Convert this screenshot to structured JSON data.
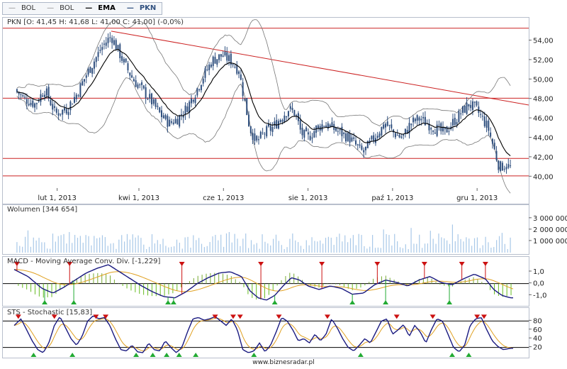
{
  "legend": {
    "items": [
      {
        "label": "BOL",
        "color": "#888888"
      },
      {
        "label": "BOL",
        "color": "#888888"
      },
      {
        "label": "EMA",
        "color": "#000000"
      },
      {
        "label": "PKN",
        "color": "#30507f"
      }
    ]
  },
  "footer": "www.biznesradar.pl",
  "chart_data": [
    {
      "type": "candlestick",
      "title": "PKN [O: 41,45  H: 41,68  L: 41,00  C: 41,00] (-0,0%)",
      "ylim": [
        39,
        55.5
      ],
      "yticks": [
        "40,00",
        "42,00",
        "44,00",
        "46,00",
        "48,00",
        "50,00",
        "52,00",
        "54,00"
      ],
      "ytick_values": [
        40,
        42,
        44,
        46,
        48,
        50,
        52,
        54
      ],
      "xticks": [
        "lut 1, 2013",
        "kwi 1, 2013",
        "cze 1, 2013",
        "sie 1, 2013",
        "paź 1, 2013",
        "gru 1, 2013"
      ],
      "xtick_days": [
        31,
        90,
        151,
        212,
        273,
        334
      ],
      "days_total": 360,
      "horizontal_lines": [
        55.3,
        48.1,
        41.9,
        40.1
      ],
      "trendline": [
        {
          "day": 70,
          "value": 55.0
        },
        {
          "day": 360,
          "value": 47.4
        }
      ],
      "close_anchors": [
        [
          0,
          49.0
        ],
        [
          8,
          48.0
        ],
        [
          15,
          47.5
        ],
        [
          22,
          49.0
        ],
        [
          30,
          46.5
        ],
        [
          38,
          47.0
        ],
        [
          45,
          48.5
        ],
        [
          52,
          50.5
        ],
        [
          58,
          52.0
        ],
        [
          64,
          53.5
        ],
        [
          70,
          54.5
        ],
        [
          75,
          53.0
        ],
        [
          80,
          51.5
        ],
        [
          86,
          50.0
        ],
        [
          92,
          49.0
        ],
        [
          98,
          48.0
        ],
        [
          105,
          46.5
        ],
        [
          112,
          45.5
        ],
        [
          118,
          46.0
        ],
        [
          124,
          47.0
        ],
        [
          130,
          48.5
        ],
        [
          137,
          50.5
        ],
        [
          143,
          52.0
        ],
        [
          150,
          52.5
        ],
        [
          156,
          52.0
        ],
        [
          162,
          51.0
        ],
        [
          166,
          48.0
        ],
        [
          170,
          45.0
        ],
        [
          175,
          43.5
        ],
        [
          180,
          44.5
        ],
        [
          186,
          45.0
        ],
        [
          192,
          46.0
        ],
        [
          198,
          47.0
        ],
        [
          203,
          46.5
        ],
        [
          207,
          44.5
        ],
        [
          212,
          44.0
        ],
        [
          218,
          45.0
        ],
        [
          224,
          45.5
        ],
        [
          230,
          45.0
        ],
        [
          236,
          44.5
        ],
        [
          242,
          44.0
        ],
        [
          248,
          43.0
        ],
        [
          252,
          42.5
        ],
        [
          257,
          43.5
        ],
        [
          262,
          44.5
        ],
        [
          268,
          45.5
        ],
        [
          274,
          44.5
        ],
        [
          280,
          44.0
        ],
        [
          286,
          45.5
        ],
        [
          292,
          46.0
        ],
        [
          298,
          45.5
        ],
        [
          304,
          45.0
        ],
        [
          310,
          44.5
        ],
        [
          316,
          45.5
        ],
        [
          322,
          46.5
        ],
        [
          328,
          47.5
        ],
        [
          333,
          47.0
        ],
        [
          338,
          46.0
        ],
        [
          342,
          45.0
        ],
        [
          346,
          43.0
        ],
        [
          350,
          41.0
        ],
        [
          354,
          41.2
        ],
        [
          358,
          41.0
        ]
      ]
    },
    {
      "type": "bar",
      "title": "Wolumen [344 654]",
      "ylim": [
        0,
        3800000
      ],
      "yticks": [
        "1 000 000",
        "2 000 000",
        "3 000 000"
      ],
      "ytick_values": [
        1000000,
        2000000,
        3000000
      ]
    },
    {
      "type": "line",
      "title": "MACD - Moving Average Conv. Div. [-1,229]",
      "ylim": [
        -1.7,
        1.9
      ],
      "yticks": [
        "1,0",
        "0,0",
        "-1,0"
      ],
      "ytick_values": [
        1,
        0,
        -1
      ],
      "macd_anchors": [
        [
          0,
          1.2
        ],
        [
          10,
          0.6
        ],
        [
          20,
          -0.4
        ],
        [
          28,
          -0.8
        ],
        [
          36,
          -0.3
        ],
        [
          44,
          0.3
        ],
        [
          52,
          0.9
        ],
        [
          60,
          1.3
        ],
        [
          68,
          1.6
        ],
        [
          76,
          1.0
        ],
        [
          84,
          0.4
        ],
        [
          92,
          -0.2
        ],
        [
          100,
          -0.7
        ],
        [
          108,
          -1.1
        ],
        [
          116,
          -1.2
        ],
        [
          124,
          -0.7
        ],
        [
          132,
          0.0
        ],
        [
          140,
          0.5
        ],
        [
          148,
          0.9
        ],
        [
          156,
          1.0
        ],
        [
          164,
          0.6
        ],
        [
          170,
          -0.6
        ],
        [
          176,
          -1.2
        ],
        [
          182,
          -1.4
        ],
        [
          188,
          -1.0
        ],
        [
          194,
          -0.2
        ],
        [
          200,
          0.5
        ],
        [
          206,
          0.3
        ],
        [
          212,
          -0.2
        ],
        [
          220,
          -0.5
        ],
        [
          228,
          -0.2
        ],
        [
          236,
          -0.4
        ],
        [
          244,
          -0.9
        ],
        [
          252,
          -0.8
        ],
        [
          260,
          -0.1
        ],
        [
          268,
          0.3
        ],
        [
          276,
          0.1
        ],
        [
          284,
          -0.2
        ],
        [
          292,
          0.3
        ],
        [
          300,
          0.6
        ],
        [
          308,
          0.1
        ],
        [
          316,
          -0.1
        ],
        [
          324,
          0.4
        ],
        [
          332,
          0.8
        ],
        [
          340,
          0.4
        ],
        [
          346,
          -0.5
        ],
        [
          352,
          -1.0
        ],
        [
          358,
          -1.2
        ]
      ],
      "sell_signals_days": [
        2,
        40,
        121,
        178,
        222,
        262,
        296,
        323,
        340
      ],
      "buy_signals_days": [
        22,
        43,
        111,
        115,
        188,
        244,
        268,
        314
      ],
      "legend_colors": {
        "macd": "#1a1a80",
        "signal": "#e0a020",
        "hist_pos": "#77aa33",
        "hist_neg": "#66bb22",
        "sell": "#cc1111",
        "buy": "#22aa33"
      }
    },
    {
      "type": "line",
      "title": "STS - Stochastic [15,83]",
      "ylim": [
        0,
        100
      ],
      "yticks": [
        "80",
        "60",
        "40",
        "20"
      ],
      "ytick_values": [
        80,
        60,
        40,
        20
      ],
      "horizontal_lines": [
        80,
        20
      ],
      "k_anchors": [
        [
          0,
          70
        ],
        [
          5,
          85
        ],
        [
          9,
          60
        ],
        [
          13,
          35
        ],
        [
          17,
          15
        ],
        [
          21,
          8
        ],
        [
          25,
          30
        ],
        [
          29,
          70
        ],
        [
          33,
          90
        ],
        [
          37,
          65
        ],
        [
          41,
          40
        ],
        [
          45,
          25
        ],
        [
          49,
          45
        ],
        [
          53,
          80
        ],
        [
          57,
          92
        ],
        [
          61,
          85
        ],
        [
          65,
          88
        ],
        [
          69,
          70
        ],
        [
          73,
          40
        ],
        [
          77,
          15
        ],
        [
          81,
          12
        ],
        [
          85,
          25
        ],
        [
          89,
          10
        ],
        [
          93,
          8
        ],
        [
          97,
          30
        ],
        [
          101,
          15
        ],
        [
          105,
          12
        ],
        [
          109,
          35
        ],
        [
          113,
          20
        ],
        [
          117,
          8
        ],
        [
          121,
          20
        ],
        [
          125,
          55
        ],
        [
          129,
          85
        ],
        [
          133,
          88
        ],
        [
          137,
          82
        ],
        [
          141,
          85
        ],
        [
          145,
          90
        ],
        [
          149,
          80
        ],
        [
          153,
          70
        ],
        [
          157,
          85
        ],
        [
          161,
          60
        ],
        [
          165,
          15
        ],
        [
          169,
          8
        ],
        [
          173,
          12
        ],
        [
          177,
          30
        ],
        [
          181,
          10
        ],
        [
          185,
          25
        ],
        [
          189,
          55
        ],
        [
          193,
          88
        ],
        [
          197,
          80
        ],
        [
          201,
          60
        ],
        [
          205,
          35
        ],
        [
          209,
          40
        ],
        [
          213,
          30
        ],
        [
          217,
          50
        ],
        [
          221,
          35
        ],
        [
          225,
          50
        ],
        [
          229,
          85
        ],
        [
          233,
          65
        ],
        [
          237,
          40
        ],
        [
          241,
          20
        ],
        [
          245,
          12
        ],
        [
          249,
          25
        ],
        [
          253,
          40
        ],
        [
          257,
          30
        ],
        [
          261,
          55
        ],
        [
          265,
          80
        ],
        [
          269,
          85
        ],
        [
          273,
          50
        ],
        [
          277,
          60
        ],
        [
          281,
          72
        ],
        [
          285,
          45
        ],
        [
          289,
          70
        ],
        [
          293,
          55
        ],
        [
          297,
          30
        ],
        [
          301,
          60
        ],
        [
          305,
          85
        ],
        [
          309,
          80
        ],
        [
          313,
          50
        ],
        [
          317,
          20
        ],
        [
          321,
          10
        ],
        [
          325,
          25
        ],
        [
          329,
          70
        ],
        [
          333,
          85
        ],
        [
          337,
          88
        ],
        [
          341,
          60
        ],
        [
          345,
          35
        ],
        [
          349,
          22
        ],
        [
          353,
          15
        ],
        [
          358,
          18
        ]
      ],
      "sell_signals_days": [
        3,
        29,
        59,
        66,
        145,
        158,
        163,
        191,
        226,
        276,
        302,
        334,
        339
      ],
      "buy_signals_days": [
        14,
        42,
        88,
        100,
        110,
        119,
        131,
        173,
        250,
        316,
        328
      ],
      "legend_colors": {
        "k": "#1a1a80",
        "d": "#e0a020",
        "sell": "#cc1111",
        "buy": "#22aa33"
      }
    }
  ]
}
